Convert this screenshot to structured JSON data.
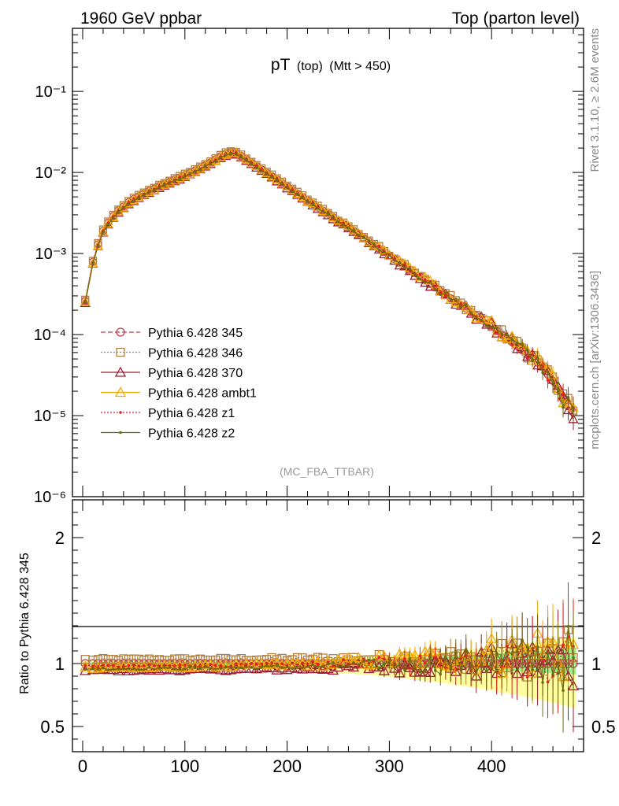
{
  "header": {
    "left": "1960 GeV ppbar",
    "right": "Top (parton level)"
  },
  "main_title": {
    "main": "pT",
    "sub1": "(top)",
    "sub2": "(Mtt > 450)"
  },
  "watermark": "(MC_FBA_TTBAR)",
  "side_text": {
    "rivet": "Rivet 3.1.10, ≥ 2.6M events",
    "mcplots": "mcplots.cern.ch [arXiv:1306.3436]"
  },
  "ratio_ylabel": "Ratio to Pythia 6.428 345",
  "legend": [
    {
      "label": "Pythia 6.428 345",
      "color": "#c0394b",
      "marker": "circle",
      "dash": "6,3"
    },
    {
      "label": "Pythia 6.428 346",
      "color": "#b08040",
      "marker": "square",
      "dash": "2,2"
    },
    {
      "label": "Pythia 6.428 370",
      "color": "#9b1b30",
      "marker": "triangle",
      "dash": ""
    },
    {
      "label": "Pythia 6.428 ambt1",
      "color": "#f5a800",
      "marker": "triangle",
      "dash": ""
    },
    {
      "label": "Pythia 6.428 z1",
      "color": "#e02020",
      "marker": "dot",
      "dash": "2,2"
    },
    {
      "label": "Pythia 6.428 z2",
      "color": "#6b6b10",
      "marker": "dot",
      "dash": ""
    }
  ],
  "chart_data": {
    "type": "line",
    "xlim": [
      -10,
      490
    ],
    "x_ticks": [
      "0",
      "100",
      "200",
      "300",
      "400"
    ],
    "main_ylog": true,
    "main_ylim": [
      1e-06,
      0.6
    ],
    "main_ytick_labels": [
      "10⁻⁶",
      "10⁻⁵",
      "10⁻⁴",
      "10⁻³",
      "10⁻²",
      "10⁻¹"
    ],
    "ratio_ylim": [
      0.3,
      2.3
    ],
    "ratio_ytick_labels": [
      "0.5",
      "1",
      "2"
    ],
    "x": [
      2.5,
      10,
      15,
      20,
      25,
      30,
      35,
      40,
      45,
      50,
      55,
      60,
      65,
      70,
      75,
      80,
      85,
      90,
      95,
      100,
      105,
      110,
      115,
      120,
      125,
      130,
      135,
      140,
      145,
      150,
      155,
      160,
      165,
      170,
      175,
      180,
      185,
      190,
      195,
      200,
      205,
      210,
      215,
      220,
      225,
      230,
      235,
      240,
      245,
      250,
      255,
      260,
      265,
      270,
      275,
      280,
      285,
      290,
      295,
      300,
      305,
      310,
      315,
      320,
      325,
      330,
      335,
      340,
      345,
      350,
      355,
      360,
      365,
      370,
      375,
      380,
      385,
      390,
      395,
      400,
      405,
      410,
      415,
      420,
      425,
      430,
      435,
      440,
      445,
      450,
      455,
      460,
      465,
      470,
      475,
      480
    ],
    "reference_values": [
      0.00026,
      0.00079,
      0.0013,
      0.0019,
      0.0024,
      0.0029,
      0.0034,
      0.0038,
      0.0043,
      0.0047,
      0.0051,
      0.0055,
      0.0059,
      0.0063,
      0.0068,
      0.0072,
      0.0077,
      0.0082,
      0.0087,
      0.0093,
      0.0099,
      0.0106,
      0.0114,
      0.0123,
      0.0133,
      0.0145,
      0.0158,
      0.017,
      0.0177,
      0.0174,
      0.016,
      0.0145,
      0.0132,
      0.012,
      0.0109,
      0.0099,
      0.009,
      0.0082,
      0.0074,
      0.0067,
      0.0061,
      0.0055,
      0.005,
      0.0045,
      0.0041,
      0.0037,
      0.0034,
      0.0031,
      0.0028,
      0.0025,
      0.0023,
      0.0021,
      0.0019,
      0.0017,
      0.00155,
      0.0014,
      0.00127,
      0.00115,
      0.00104,
      0.00094,
      0.00085,
      0.00077,
      0.0007,
      0.00063,
      0.00057,
      0.00052,
      0.00047,
      0.00042,
      0.00038,
      0.00034,
      0.00031,
      0.00028,
      0.00025,
      0.00023,
      0.00021,
      0.00019,
      0.00017,
      0.000153,
      0.000138,
      0.000125,
      0.000112,
      0.0001,
      9e-05,
      8.1e-05,
      7.2e-05,
      6.4e-05,
      5.7e-05,
      5.1e-05,
      4.5e-05,
      4e-05,
      3.2e-05,
      2.7e-05,
      2.1e-05,
      1.6e-05,
      1.3e-05,
      1.1e-05
    ],
    "series_ratio_levels": [
      {
        "name": "Pythia 6.428 345",
        "early": 1.0,
        "late": 1.0,
        "spread": 0.0
      },
      {
        "name": "Pythia 6.428 346",
        "early": 1.03,
        "late": 1.05,
        "spread": 0.22
      },
      {
        "name": "Pythia 6.428 370",
        "early": 0.95,
        "late": 1.02,
        "spread": 0.26
      },
      {
        "name": "Pythia 6.428 ambt1",
        "early": 0.97,
        "late": 1.12,
        "spread": 0.3
      },
      {
        "name": "Pythia 6.428 z1",
        "early": 0.98,
        "late": 1.06,
        "spread": 0.24
      },
      {
        "name": "Pythia 6.428 z2",
        "early": 0.96,
        "late": 1.04,
        "spread": 0.28
      }
    ]
  }
}
